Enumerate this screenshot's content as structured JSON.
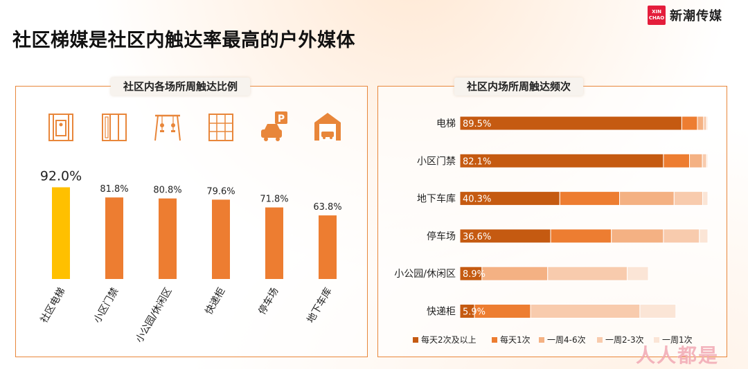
{
  "page": {
    "title": "社区梯媒是社区内触达率最高的户外媒体",
    "brand": {
      "logo_text_line1": "XIN",
      "logo_text_line2": "CHAO",
      "name": "新潮传媒"
    },
    "watermark": "人人都是"
  },
  "colors": {
    "accent": "#e8863a",
    "highlight": "#ffc000",
    "bar": "#ed7d31",
    "seg_daily2": "#c55a11",
    "seg_daily1": "#ed7d31",
    "seg_week46": "#f4b183",
    "seg_week23": "#f8cbad",
    "seg_week1": "#fbe5d6"
  },
  "icons": [
    "elevator-icon",
    "gate-icon",
    "playground-icon",
    "locker-icon",
    "parking-icon",
    "garage-icon"
  ],
  "chart_data": [
    {
      "type": "bar",
      "title": "社区内各场所周触达比例",
      "categories": [
        "社区电梯",
        "小区门禁",
        "小公园/休闲区",
        "快递柜",
        "停车场",
        "地下车库"
      ],
      "values": [
        92.0,
        81.8,
        80.8,
        79.6,
        71.8,
        63.8
      ],
      "data_labels": [
        "92.0%",
        "81.8%",
        "80.8%",
        "79.6%",
        "71.8%",
        "63.8%"
      ],
      "highlight_index": 0,
      "ylim": [
        0,
        100
      ]
    },
    {
      "type": "bar",
      "orientation": "horizontal-stacked",
      "title": "社区内场所周触达频次",
      "categories": [
        "电梯",
        "小区门禁",
        "地下车库",
        "停车场",
        "小公园/休闲区",
        "快递柜"
      ],
      "series": [
        {
          "name": "每天2次及以上",
          "values": [
            89.5,
            82.1,
            40.3,
            36.6,
            8.9,
            5.9
          ],
          "labels": [
            "89.5%",
            "82.1%",
            "40.3%",
            "36.6%",
            "8.9%",
            "5.9%"
          ]
        },
        {
          "name": "每天1次",
          "values": [
            6.3,
            10.5,
            24.1,
            24.5,
            0.0,
            22.6
          ]
        },
        {
          "name": "一周4-6次",
          "values": [
            2.5,
            5.2,
            22.0,
            21.0,
            26.5,
            0.0
          ]
        },
        {
          "name": "一周2-3次",
          "values": [
            1.2,
            1.7,
            11.5,
            14.5,
            32.1,
            44.1
          ]
        },
        {
          "name": "一周1次",
          "values": [
            0.5,
            0.5,
            2.1,
            3.4,
            8.5,
            14.5
          ]
        }
      ],
      "xlim": [
        0,
        100
      ],
      "legend": "bottom"
    }
  ]
}
